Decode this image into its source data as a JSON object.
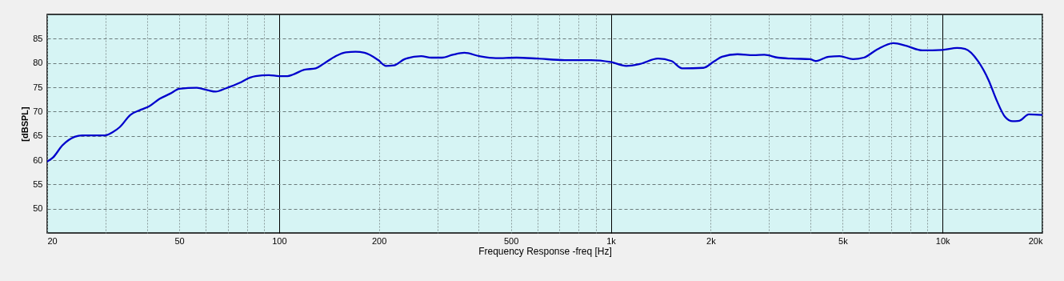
{
  "chart_data": {
    "type": "line",
    "xlabel": "Frequency Response -freq [Hz]",
    "ylabel": "[dBSPL]",
    "log": "x",
    "grid": true,
    "line_style": "solid",
    "marker": "none",
    "xlim": [
      20,
      20000
    ],
    "ylim": [
      45,
      90
    ],
    "xticks": [
      20,
      {
        "value": 30,
        "label": null
      },
      {
        "value": 40,
        "label": null
      },
      50,
      {
        "value": 60,
        "label": null
      },
      {
        "value": 70,
        "label": null
      },
      {
        "value": 80,
        "label": null
      },
      {
        "value": 90,
        "label": null
      },
      100,
      200,
      {
        "value": 300,
        "label": null
      },
      {
        "value": 400,
        "label": null
      },
      500,
      {
        "value": 600,
        "label": null
      },
      {
        "value": 700,
        "label": null
      },
      {
        "value": 800,
        "label": null
      },
      {
        "value": 900,
        "label": null
      },
      {
        "value": 1000,
        "label": "1k"
      },
      {
        "value": 2000,
        "label": "2k"
      },
      {
        "value": 3000,
        "label": null
      },
      {
        "value": 4000,
        "label": null
      },
      {
        "value": 5000,
        "label": "5k"
      },
      {
        "value": 6000,
        "label": null
      },
      {
        "value": 7000,
        "label": null
      },
      {
        "value": 8000,
        "label": null
      },
      {
        "value": 9000,
        "label": null
      },
      {
        "value": 10000,
        "label": "10k"
      },
      {
        "value": 20000,
        "label": "20k"
      }
    ],
    "yticks": [
      50,
      55,
      60,
      65,
      70,
      75,
      80,
      85
    ],
    "series": [
      {
        "color": "#0000cc",
        "x": [
          20,
          20.8,
          22.2,
          24.2,
          25.5,
          29.9,
          31.4,
          33.1,
          35.6,
          38.4,
          40.6,
          43.6,
          47,
          50.1,
          56.5,
          60.9,
          64.4,
          69.2,
          76,
          81.8,
          84.9,
          93.2,
          100,
          106,
          110,
          119,
          129,
          136,
          148,
          159,
          170,
          181,
          199,
          210,
          222,
          239,
          268,
          288,
          310,
          334,
          362,
          402,
          450,
          520,
          602,
          726,
          872,
          998,
          1114,
          1224,
          1388,
          1524,
          1640,
          1900,
          2046,
          2164,
          2410,
          2694,
          2902,
          3190,
          3504,
          3988,
          4140,
          4540,
          4892,
          5368,
          5786,
          6354,
          7112,
          7798,
          8694,
          9992,
          11060,
          11700,
          12820,
          13760,
          14560,
          15400,
          16280,
          17040,
          18200,
          20000
        ],
        "values": [
          59.7,
          60.5,
          63.0,
          64.8,
          65.1,
          65.1,
          65.7,
          66.8,
          69.3,
          70.4,
          71.1,
          72.6,
          73.7,
          74.7,
          74.9,
          74.4,
          74.1,
          74.8,
          75.9,
          77.0,
          77.3,
          77.5,
          77.3,
          77.3,
          77.6,
          78.6,
          78.9,
          79.8,
          81.4,
          82.2,
          82.3,
          82.1,
          80.6,
          79.4,
          79.5,
          80.8,
          81.4,
          81.1,
          81.1,
          81.7,
          82.1,
          81.4,
          81.0,
          81.1,
          80.9,
          80.6,
          80.6,
          80.2,
          79.4,
          79.8,
          80.9,
          80.4,
          78.9,
          79.0,
          80.3,
          81.3,
          81.8,
          81.6,
          81.7,
          81.1,
          80.9,
          80.8,
          80.4,
          81.3,
          81.4,
          80.8,
          81.1,
          82.8,
          84.1,
          83.5,
          82.6,
          82.7,
          83.1,
          82.9,
          80.3,
          76.5,
          72.3,
          69.0,
          68.0,
          68.1,
          69.4,
          69.3
        ]
      }
    ]
  }
}
